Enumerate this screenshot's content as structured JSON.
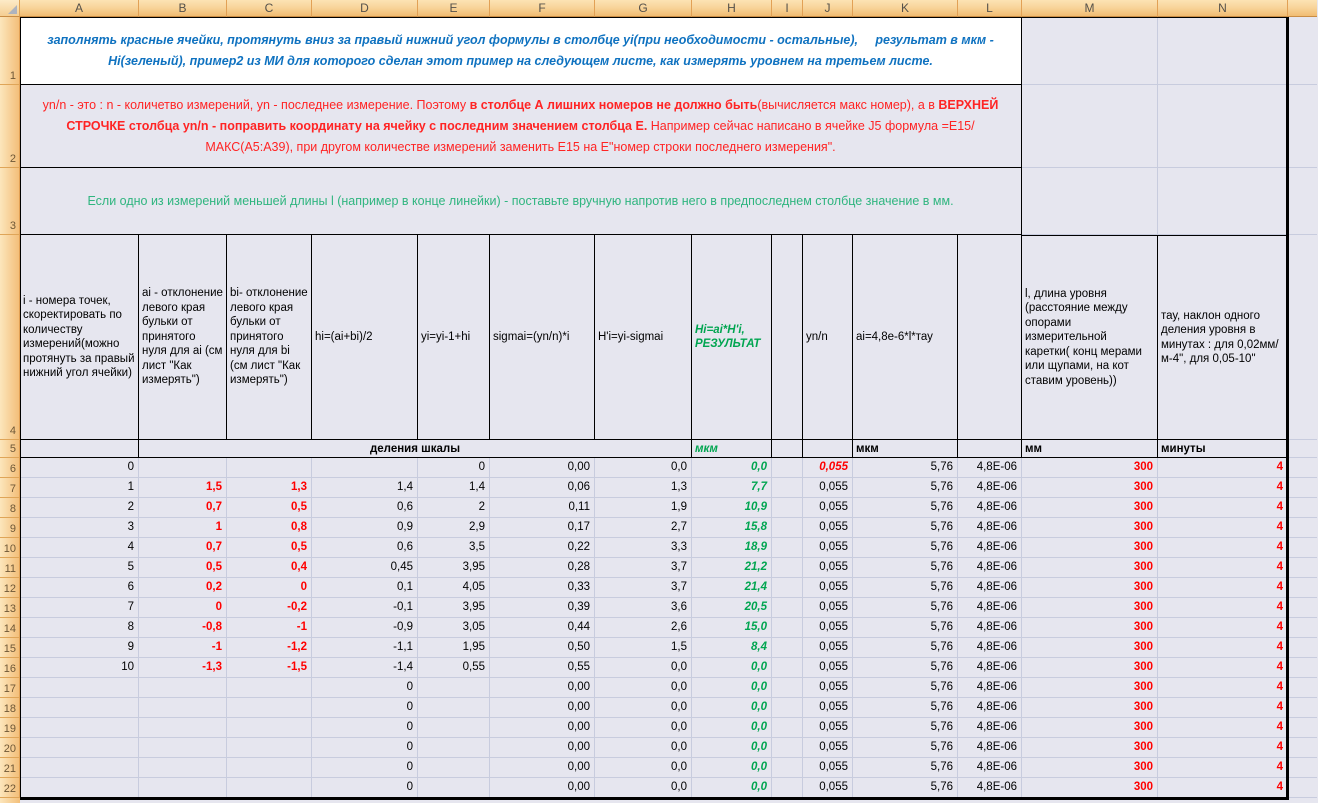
{
  "columns": [
    "A",
    "B",
    "C",
    "D",
    "E",
    "F",
    "G",
    "H",
    "I",
    "J",
    "K",
    "L",
    "M",
    "N"
  ],
  "notes": {
    "row1": {
      "row_number": "1",
      "lines": [
        "заполнять красные ячейки, протянуть вниз за правый нижний угол формулы в столбце yi(при необходимости - остальные),     результат в мкм -",
        "Hi(зеленый), пример2 из МИ для которого сделан этот пример на следующем листе, как измерять уровнем на третьем листе."
      ]
    },
    "row2": {
      "row_number": "2",
      "parts": [
        {
          "text": "yn/n - это : n - количетво измерений, yn - последнее измерение. Поэтому ",
          "bold": false
        },
        {
          "text": "в столбце А лишних номеров не должно быть",
          "bold": true
        },
        {
          "text": "(вычисляется макс номер), а в ",
          "bold": false
        },
        {
          "text": "ВЕРХНЕЙ СТРОЧКЕ столбца yn/n - поправить координату на ячейку с последним значением столбца Е.",
          "bold": true
        },
        {
          "text": " Например сейчас написано в ячейке J5 формула =E15/МАКС(A5:A39), при другом количестве измерений заменить E15 на Е\"номер строки последнего измерения\".",
          "bold": false
        }
      ]
    },
    "row3": {
      "row_number": "3",
      "text": "Если одно из измерений меньшей длины l (например в конце линейки) - поставьте вручную напротив него в предпоследнем столбце значение в мм."
    }
  },
  "header_row": {
    "row_number": "4",
    "cells": {
      "A": "i - номера точек, скоректировать по количеству измерений(можно протянуть за правый нижний угол ячейки)",
      "B": "ai - отклонение левого края бульки от принятого нуля для ai (см лист \"Как измерять\")",
      "C": "bi- отклонение левого края бульки от принятого нуля для bi (см лист \"Как измерять\")",
      "D": "hi=(ai+bi)/2",
      "E": "yi=yi-1+hi",
      "F": "sigmai=(yn/n)*i",
      "G": "H'i=yi-sigmai",
      "H": "Hi=ai*H'i, РЕЗУЛЬТАТ",
      "I": "",
      "J": "yn/n",
      "K": "ai=4,8e-6*l*тау",
      "L": "",
      "M": "l, длина уровня (расстояние между опорами измерительной каретки( конц мерами или щупами, на кот ставим уровень))",
      "N": "тау, наклон одного деления уровня в минутах : для 0,02мм/м-4\", для 0,05-10\""
    }
  },
  "units_row": {
    "row_number": "5",
    "scale_label": "деления шкалы",
    "H": "мкм",
    "K": "мкм",
    "M": "мм",
    "N": "минуты"
  },
  "rows": [
    {
      "n": "6",
      "A": "0",
      "B": "",
      "C": "",
      "D": "",
      "E": "0",
      "F": "0,00",
      "G": "0,0",
      "H": "0,0",
      "I": "",
      "J": "0,055",
      "K": "5,76",
      "L": "4,8E-06",
      "M": "300",
      "N": "4"
    },
    {
      "n": "7",
      "A": "1",
      "B": "1,5",
      "C": "1,3",
      "D": "1,4",
      "E": "1,4",
      "F": "0,06",
      "G": "1,3",
      "H": "7,7",
      "I": "",
      "J": "0,055",
      "K": "5,76",
      "L": "4,8E-06",
      "M": "300",
      "N": "4"
    },
    {
      "n": "8",
      "A": "2",
      "B": "0,7",
      "C": "0,5",
      "D": "0,6",
      "E": "2",
      "F": "0,11",
      "G": "1,9",
      "H": "10,9",
      "I": "",
      "J": "0,055",
      "K": "5,76",
      "L": "4,8E-06",
      "M": "300",
      "N": "4"
    },
    {
      "n": "9",
      "A": "3",
      "B": "1",
      "C": "0,8",
      "D": "0,9",
      "E": "2,9",
      "F": "0,17",
      "G": "2,7",
      "H": "15,8",
      "I": "",
      "J": "0,055",
      "K": "5,76",
      "L": "4,8E-06",
      "M": "300",
      "N": "4"
    },
    {
      "n": "10",
      "A": "4",
      "B": "0,7",
      "C": "0,5",
      "D": "0,6",
      "E": "3,5",
      "F": "0,22",
      "G": "3,3",
      "H": "18,9",
      "I": "",
      "J": "0,055",
      "K": "5,76",
      "L": "4,8E-06",
      "M": "300",
      "N": "4"
    },
    {
      "n": "11",
      "A": "5",
      "B": "0,5",
      "C": "0,4",
      "D": "0,45",
      "E": "3,95",
      "F": "0,28",
      "G": "3,7",
      "H": "21,2",
      "I": "",
      "J": "0,055",
      "K": "5,76",
      "L": "4,8E-06",
      "M": "300",
      "N": "4"
    },
    {
      "n": "12",
      "A": "6",
      "B": "0,2",
      "C": "0",
      "D": "0,1",
      "E": "4,05",
      "F": "0,33",
      "G": "3,7",
      "H": "21,4",
      "I": "",
      "J": "0,055",
      "K": "5,76",
      "L": "4,8E-06",
      "M": "300",
      "N": "4"
    },
    {
      "n": "13",
      "A": "7",
      "B": "0",
      "C": "-0,2",
      "D": "-0,1",
      "E": "3,95",
      "F": "0,39",
      "G": "3,6",
      "H": "20,5",
      "I": "",
      "J": "0,055",
      "K": "5,76",
      "L": "4,8E-06",
      "M": "300",
      "N": "4"
    },
    {
      "n": "14",
      "A": "8",
      "B": "-0,8",
      "C": "-1",
      "D": "-0,9",
      "E": "3,05",
      "F": "0,44",
      "G": "2,6",
      "H": "15,0",
      "I": "",
      "J": "0,055",
      "K": "5,76",
      "L": "4,8E-06",
      "M": "300",
      "N": "4"
    },
    {
      "n": "15",
      "A": "9",
      "B": "-1",
      "C": "-1,2",
      "D": "-1,1",
      "E": "1,95",
      "F": "0,50",
      "G": "1,5",
      "H": "8,4",
      "I": "",
      "J": "0,055",
      "K": "5,76",
      "L": "4,8E-06",
      "M": "300",
      "N": "4"
    },
    {
      "n": "16",
      "A": "10",
      "B": "-1,3",
      "C": "-1,5",
      "D": "-1,4",
      "E": "0,55",
      "F": "0,55",
      "G": "0,0",
      "H": "0,0",
      "I": "",
      "J": "0,055",
      "K": "5,76",
      "L": "4,8E-06",
      "M": "300",
      "N": "4"
    },
    {
      "n": "17",
      "A": "",
      "B": "",
      "C": "",
      "D": "0",
      "E": "",
      "F": "0,00",
      "G": "0,0",
      "H": "0,0",
      "I": "",
      "J": "0,055",
      "K": "5,76",
      "L": "4,8E-06",
      "M": "300",
      "N": "4"
    },
    {
      "n": "18",
      "A": "",
      "B": "",
      "C": "",
      "D": "0",
      "E": "",
      "F": "0,00",
      "G": "0,0",
      "H": "0,0",
      "I": "",
      "J": "0,055",
      "K": "5,76",
      "L": "4,8E-06",
      "M": "300",
      "N": "4"
    },
    {
      "n": "19",
      "A": "",
      "B": "",
      "C": "",
      "D": "0",
      "E": "",
      "F": "0,00",
      "G": "0,0",
      "H": "0,0",
      "I": "",
      "J": "0,055",
      "K": "5,76",
      "L": "4,8E-06",
      "M": "300",
      "N": "4"
    },
    {
      "n": "20",
      "A": "",
      "B": "",
      "C": "",
      "D": "0",
      "E": "",
      "F": "0,00",
      "G": "0,0",
      "H": "0,0",
      "I": "",
      "J": "0,055",
      "K": "5,76",
      "L": "4,8E-06",
      "M": "300",
      "N": "4"
    },
    {
      "n": "21",
      "A": "",
      "B": "",
      "C": "",
      "D": "0",
      "E": "",
      "F": "0,00",
      "G": "0,0",
      "H": "0,0",
      "I": "",
      "J": "0,055",
      "K": "5,76",
      "L": "4,8E-06",
      "M": "300",
      "N": "4"
    },
    {
      "n": "22",
      "A": "",
      "B": "",
      "C": "",
      "D": "0",
      "E": "",
      "F": "0,00",
      "G": "0,0",
      "H": "0,0",
      "I": "",
      "J": "0,055",
      "K": "5,76",
      "L": "4,8E-06",
      "M": "300",
      "N": "4"
    }
  ],
  "colors": {
    "accent_red": "#FF0000",
    "accent_green": "#00A550",
    "accent_blue": "#0F72C0",
    "note3_green": "#2FB57F",
    "cell_bg": "#E6E6EF",
    "grid_line": "#C8CCDE",
    "header_orange": "#F1BC72"
  }
}
